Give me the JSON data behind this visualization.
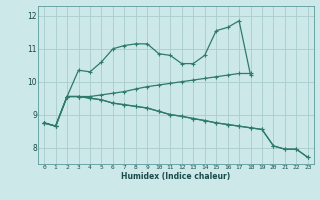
{
  "title": "",
  "xlabel": "Humidex (Indice chaleur)",
  "bg_color": "#cce8e8",
  "grid_color": "#aacccc",
  "line_color": "#2e7b6b",
  "marker": "+",
  "xlim": [
    -0.5,
    23.5
  ],
  "ylim": [
    7.5,
    12.3
  ],
  "yticks": [
    8,
    9,
    10,
    11,
    12
  ],
  "xticks": [
    0,
    1,
    2,
    3,
    4,
    5,
    6,
    7,
    8,
    9,
    10,
    11,
    12,
    13,
    14,
    15,
    16,
    17,
    18,
    19,
    20,
    21,
    22,
    23
  ],
  "s1": [
    8.75,
    8.65,
    9.55,
    10.35,
    10.3,
    10.6,
    11.0,
    11.1,
    11.15,
    11.15,
    10.85,
    10.8,
    10.55,
    10.55,
    10.8,
    11.55,
    11.65,
    11.85,
    10.2,
    null,
    null,
    null,
    null,
    null
  ],
  "s2": [
    8.75,
    8.65,
    9.55,
    9.55,
    9.55,
    9.6,
    9.65,
    9.7,
    9.78,
    9.85,
    9.9,
    9.95,
    10.0,
    10.05,
    10.1,
    10.15,
    10.2,
    10.25,
    10.25,
    null,
    null,
    null,
    null,
    null
  ],
  "s3": [
    8.75,
    8.65,
    9.55,
    9.55,
    9.5,
    9.45,
    9.35,
    9.3,
    9.25,
    9.2,
    9.1,
    9.0,
    8.95,
    8.88,
    8.82,
    8.75,
    8.7,
    8.65,
    8.6,
    8.55,
    8.05,
    7.95,
    7.95,
    7.7
  ],
  "s4": [
    8.75,
    8.65,
    9.55,
    9.55,
    9.5,
    9.45,
    9.35,
    9.3,
    9.25,
    9.2,
    9.1,
    9.0,
    8.95,
    8.88,
    8.82,
    8.75,
    8.7,
    8.65,
    8.6,
    8.55,
    8.05,
    7.95,
    7.95,
    7.7
  ]
}
